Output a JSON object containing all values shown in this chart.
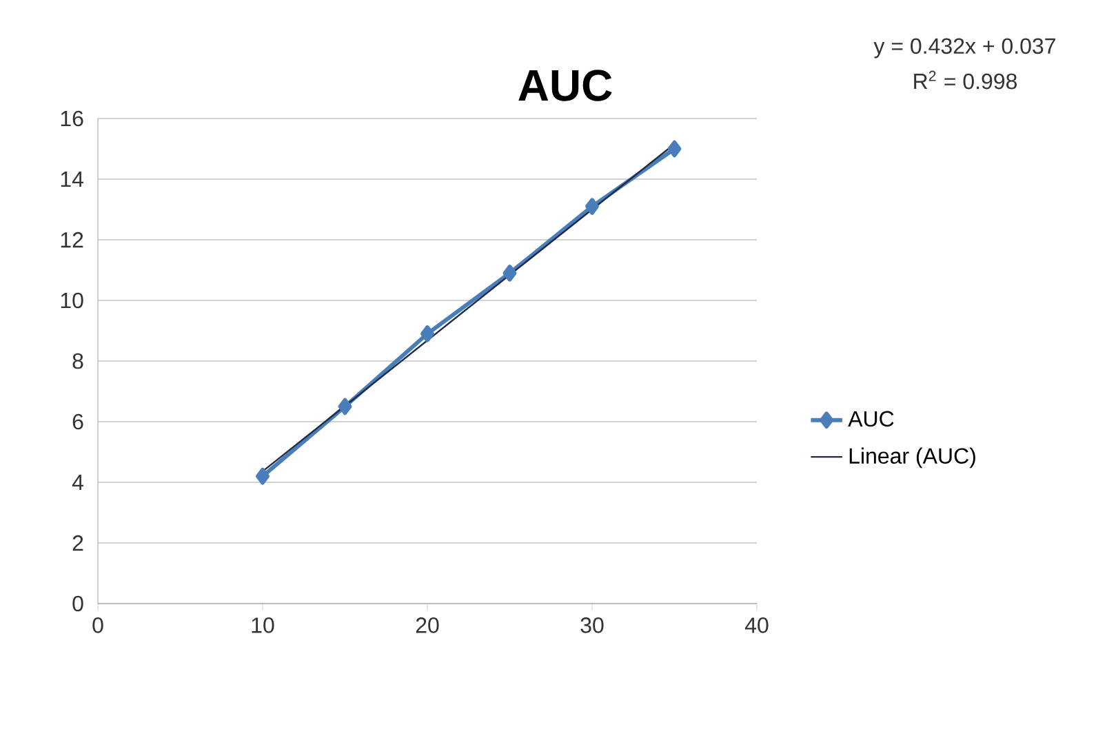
{
  "chart_data": {
    "type": "line",
    "title": "AUC",
    "x": [
      10,
      15,
      20,
      25,
      30,
      35
    ],
    "series": [
      {
        "name": "AUC",
        "color": "#4a7ebb",
        "values": [
          4.2,
          6.5,
          8.9,
          10.9,
          13.1,
          15.0
        ]
      },
      {
        "name": "Linear (AUC)",
        "color": "#1f2a44",
        "x": [
          10,
          35
        ],
        "values": [
          4.36,
          15.16
        ],
        "marker": "none"
      }
    ],
    "xlim": [
      0,
      40
    ],
    "xticks": [
      0,
      10,
      20,
      30,
      40
    ],
    "ylim": [
      0,
      16
    ],
    "yticks": [
      0,
      2,
      4,
      6,
      8,
      10,
      12,
      14,
      16
    ],
    "grid": "y",
    "legend": "right",
    "marker": "diamond",
    "line_style": "solid",
    "annotations": [
      "y = 0.432x + 0.037",
      "R$^{2}$ = 0.998"
    ]
  }
}
